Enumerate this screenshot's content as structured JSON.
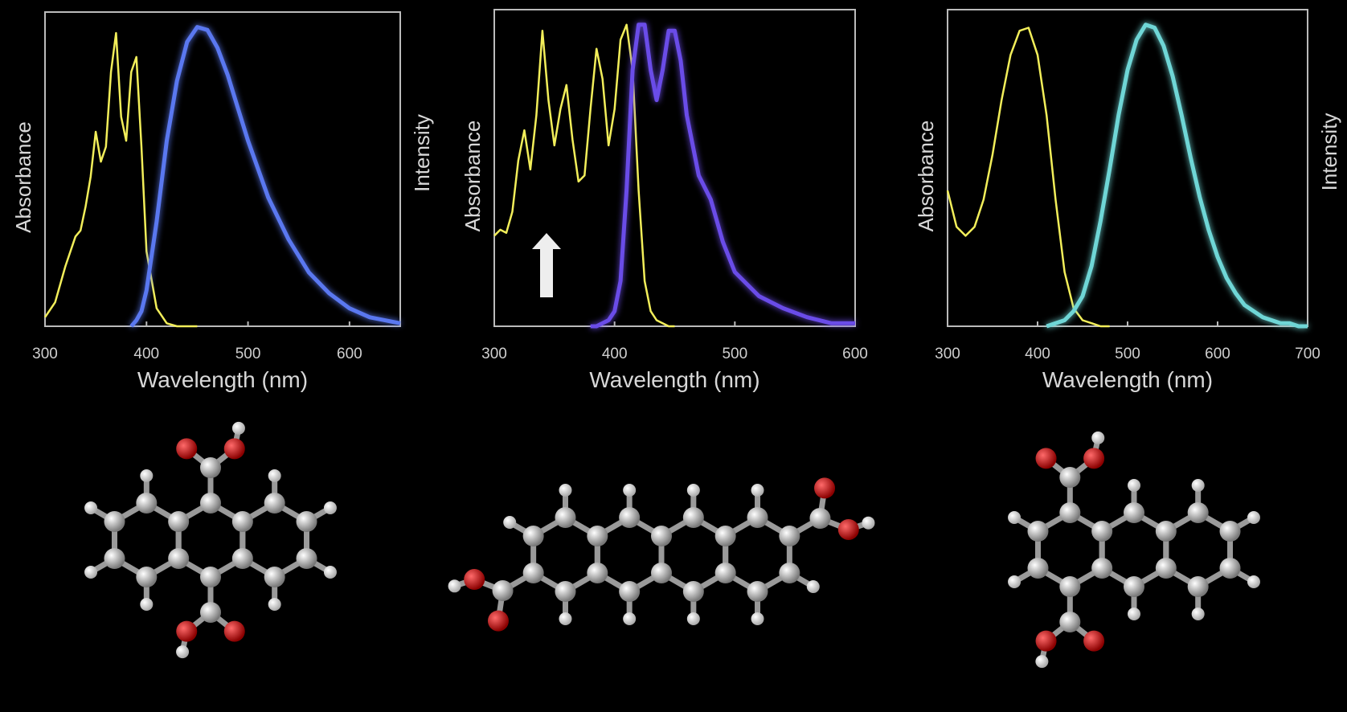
{
  "chart_data": [
    {
      "type": "line",
      "xlabel": "Wavelength (nm)",
      "ylabel": "Absorbance",
      "y2label": "Intensity",
      "xlim": [
        300,
        650
      ],
      "xticks": [
        300,
        400,
        500,
        600
      ],
      "ylim": [
        0,
        1.05
      ],
      "y2lim": [
        0,
        1.05
      ],
      "x": [
        300,
        310,
        320,
        330,
        335,
        340,
        345,
        350,
        355,
        360,
        365,
        370,
        375,
        380,
        385,
        390,
        395,
        400,
        410,
        420,
        430,
        440,
        450,
        460,
        470,
        480,
        490,
        500,
        520,
        540,
        560,
        580,
        600,
        620,
        650
      ],
      "series": [
        {
          "color": "#f2ee5a",
          "values": [
            0.03,
            0.08,
            0.2,
            0.3,
            0.32,
            0.4,
            0.5,
            0.65,
            0.55,
            0.6,
            0.85,
            0.98,
            0.7,
            0.62,
            0.85,
            0.9,
            0.6,
            0.25,
            0.06,
            0.01,
            0,
            0,
            0,
            null,
            null,
            null,
            null,
            null,
            null,
            null,
            null,
            null,
            null,
            null,
            null
          ]
        },
        {
          "color": "#5a78f0",
          "axis": "y2",
          "values": [
            null,
            null,
            null,
            null,
            null,
            null,
            null,
            null,
            null,
            null,
            null,
            null,
            null,
            null,
            0,
            0.02,
            0.05,
            0.12,
            0.35,
            0.62,
            0.82,
            0.95,
            1.0,
            0.99,
            0.93,
            0.84,
            0.73,
            0.62,
            0.43,
            0.29,
            0.18,
            0.11,
            0.06,
            0.03,
            0.01
          ]
        }
      ]
    },
    {
      "type": "line",
      "xlabel": "Wavelength (nm)",
      "ylabel": "Absorbance",
      "xlim": [
        300,
        600
      ],
      "xticks": [
        300,
        400,
        500,
        600
      ],
      "ylim": [
        0,
        1.05
      ],
      "y2lim": [
        0,
        1.05
      ],
      "x": [
        300,
        305,
        310,
        315,
        320,
        325,
        330,
        335,
        340,
        345,
        350,
        355,
        360,
        365,
        370,
        375,
        380,
        385,
        390,
        395,
        400,
        405,
        410,
        415,
        420,
        425,
        430,
        435,
        440,
        445,
        450,
        455,
        460,
        470,
        480,
        490,
        500,
        520,
        540,
        560,
        580,
        600
      ],
      "series": [
        {
          "color": "#f2ee5a",
          "values": [
            0.3,
            0.32,
            0.31,
            0.38,
            0.55,
            0.65,
            0.52,
            0.7,
            0.98,
            0.75,
            0.6,
            0.72,
            0.8,
            0.62,
            0.48,
            0.5,
            0.72,
            0.92,
            0.82,
            0.6,
            0.72,
            0.95,
            1.0,
            0.85,
            0.45,
            0.15,
            0.05,
            0.02,
            0.01,
            0,
            0,
            null,
            null,
            null,
            null,
            null,
            null,
            null,
            null,
            null,
            null,
            null
          ]
        },
        {
          "color": "#6a4ce8",
          "axis": "y2",
          "values": [
            null,
            null,
            null,
            null,
            null,
            null,
            null,
            null,
            null,
            null,
            null,
            null,
            null,
            null,
            null,
            null,
            0,
            0,
            0.01,
            0.02,
            0.05,
            0.15,
            0.45,
            0.85,
            1.0,
            1.0,
            0.85,
            0.75,
            0.85,
            0.98,
            0.98,
            0.88,
            0.7,
            0.5,
            0.42,
            0.28,
            0.18,
            0.1,
            0.06,
            0.03,
            0.01,
            0.01
          ]
        }
      ]
    },
    {
      "type": "line",
      "xlabel": "Wavelength (nm)",
      "ylabel": "Absorbance",
      "y2label": "Intensity",
      "xlim": [
        300,
        700
      ],
      "xticks": [
        300,
        400,
        500,
        600,
        700
      ],
      "ylim": [
        0,
        1.05
      ],
      "y2lim": [
        0,
        1.05
      ],
      "x": [
        300,
        310,
        320,
        330,
        340,
        350,
        360,
        370,
        380,
        390,
        400,
        410,
        420,
        430,
        440,
        450,
        460,
        470,
        480,
        490,
        500,
        510,
        520,
        530,
        540,
        550,
        560,
        570,
        580,
        590,
        600,
        610,
        620,
        630,
        640,
        650,
        660,
        670,
        680,
        690,
        700
      ],
      "series": [
        {
          "color": "#f2ee5a",
          "values": [
            0.45,
            0.33,
            0.3,
            0.33,
            0.42,
            0.57,
            0.75,
            0.9,
            0.98,
            0.99,
            0.9,
            0.7,
            0.42,
            0.18,
            0.06,
            0.02,
            0.01,
            0,
            0,
            null,
            null,
            null,
            null,
            null,
            null,
            null,
            null,
            null,
            null,
            null,
            null,
            null,
            null,
            null,
            null,
            null,
            null,
            null,
            null,
            null,
            null
          ]
        },
        {
          "color": "#6fd6d6",
          "axis": "y2",
          "values": [
            null,
            null,
            null,
            null,
            null,
            null,
            null,
            null,
            null,
            null,
            null,
            0,
            0.01,
            0.02,
            0.05,
            0.1,
            0.2,
            0.35,
            0.52,
            0.7,
            0.85,
            0.95,
            1.0,
            0.99,
            0.93,
            0.83,
            0.7,
            0.56,
            0.43,
            0.32,
            0.23,
            0.16,
            0.11,
            0.07,
            0.05,
            0.03,
            0.02,
            0.01,
            0.01,
            0,
            0
          ]
        }
      ]
    }
  ]
}
